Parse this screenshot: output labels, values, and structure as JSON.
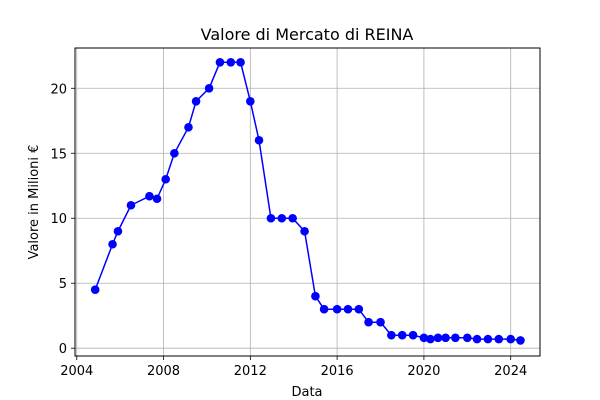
{
  "chart_data": {
    "type": "line",
    "title": "Valore di Mercato di REINA",
    "xlabel": "Data",
    "ylabel": "Valore in Milioni €",
    "xlim": [
      2003.92,
      2025.35
    ],
    "ylim": [
      -0.6,
      23.1
    ],
    "xticks": [
      2004,
      2008,
      2012,
      2016,
      2020,
      2024
    ],
    "yticks": [
      0,
      5,
      10,
      15,
      20
    ],
    "grid": true,
    "color": "#0000ff",
    "series": [
      {
        "x": [
          2004.85,
          2005.65,
          2005.9,
          2006.5,
          2007.35,
          2007.7,
          2008.1,
          2008.5,
          2009.15,
          2009.5,
          2010.1,
          2010.6,
          2011.1,
          2011.55,
          2012.0,
          2012.4,
          2012.95,
          2013.45,
          2013.95,
          2014.5,
          2015.0,
          2015.4,
          2016.0,
          2016.5,
          2017.0,
          2017.45,
          2018.0,
          2018.5,
          2019.0,
          2019.5,
          2020.0,
          2020.3,
          2020.65,
          2021.0,
          2021.45,
          2022.0,
          2022.45,
          2022.95,
          2023.45,
          2024.0,
          2024.45
        ],
        "values": [
          4.5,
          8,
          9,
          11,
          11.7,
          11.5,
          13,
          15,
          17,
          19,
          20,
          22,
          22,
          22,
          19,
          16,
          10,
          10,
          10,
          9,
          4,
          3,
          3,
          3,
          3,
          2,
          2,
          1,
          1,
          1,
          0.8,
          0.7,
          0.8,
          0.8,
          0.8,
          0.8,
          0.7,
          0.7,
          0.7,
          0.7,
          0.6
        ]
      }
    ]
  }
}
